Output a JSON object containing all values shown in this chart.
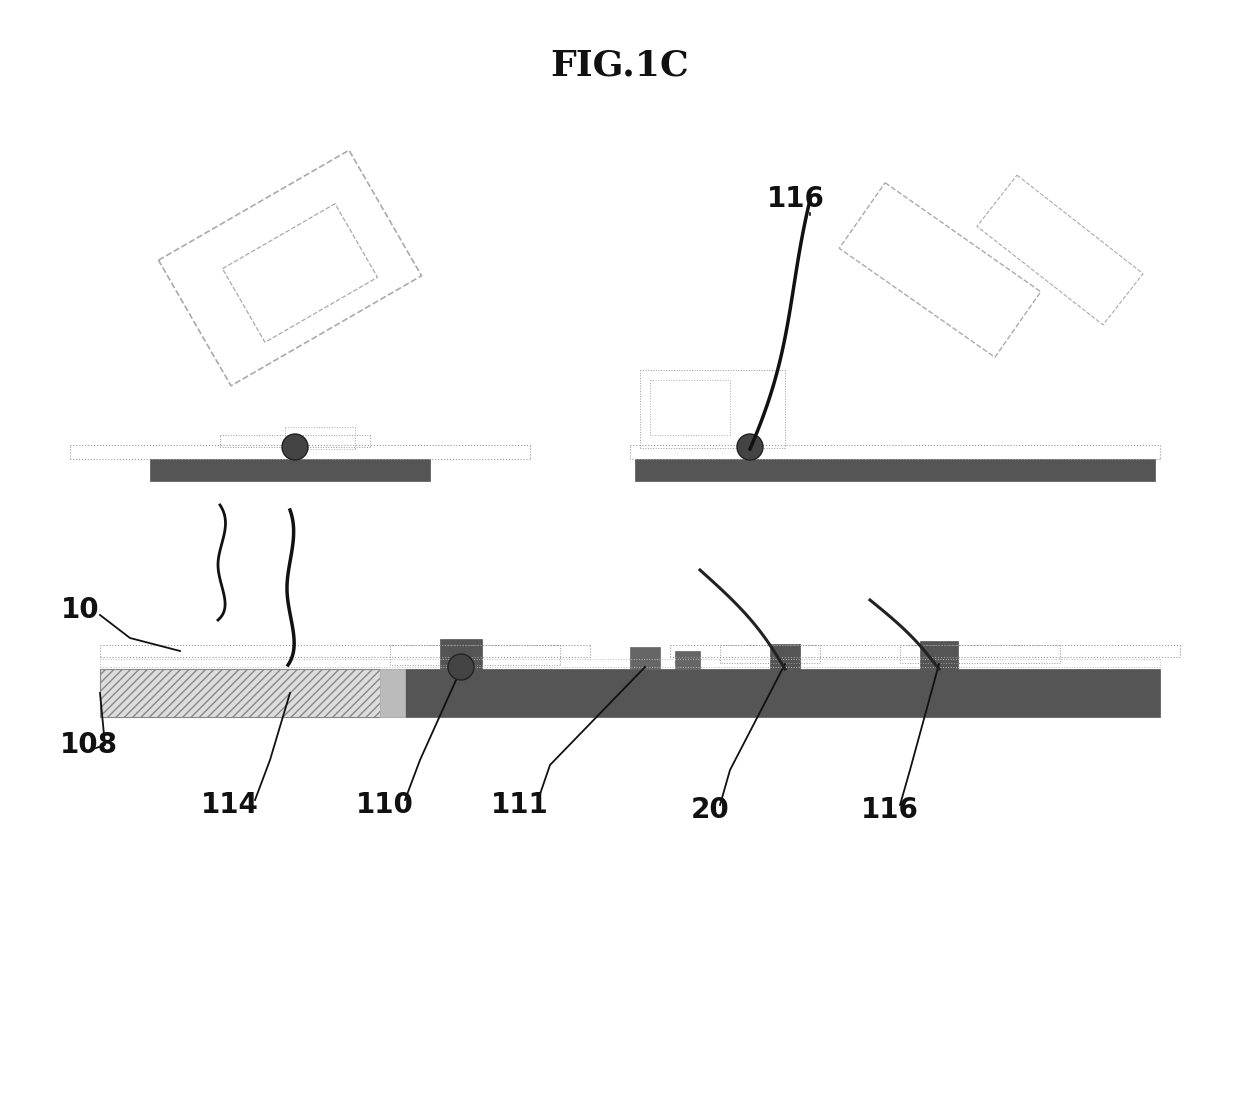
{
  "title": "FIG.1C",
  "title_fontsize": 26,
  "title_fontweight": "bold",
  "bg_color": "#ffffff",
  "fig_width": 12.4,
  "fig_height": 11.09,
  "labels": {
    "116_top": "116",
    "10": "10",
    "108": "108",
    "114": "114",
    "110": "110",
    "111": "111",
    "20": "20",
    "116_bottom": "116"
  },
  "label_fontsize": 20,
  "label_fontweight": "bold",
  "dot_color": "#777777",
  "dot_lw": 0.7,
  "dark_color": "#555555",
  "hatch_color": "#bbbbbb",
  "line_color": "#444444"
}
